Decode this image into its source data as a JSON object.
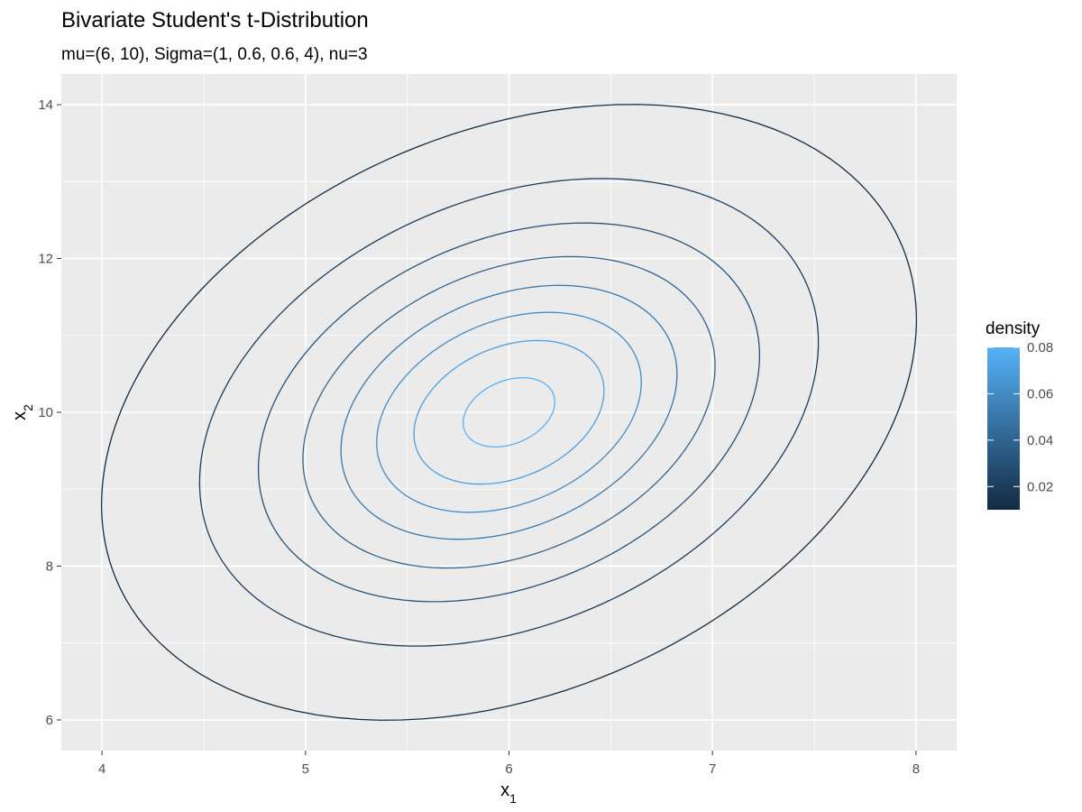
{
  "chart_data": {
    "type": "contour",
    "title": "Bivariate Student's t-Distribution",
    "subtitle": "mu=(6, 10), Sigma=(1, 0.6, 0.6, 4), nu=3",
    "xlabel": "x",
    "xlabel_subscript": "1",
    "ylabel": "x",
    "ylabel_subscript": "2",
    "xlim": [
      3.8,
      8.2
    ],
    "ylim": [
      5.6,
      14.4
    ],
    "x_ticks": [
      4,
      5,
      6,
      7,
      8
    ],
    "x_tick_labels": [
      "4",
      "5",
      "6",
      "7",
      "8"
    ],
    "y_ticks": [
      6,
      8,
      10,
      12,
      14
    ],
    "y_tick_labels": [
      "6",
      "8",
      "10",
      "12",
      "14"
    ],
    "grid": true,
    "distribution": {
      "mu": [
        6,
        10
      ],
      "sigma": [
        [
          1,
          0.6
        ],
        [
          0.6,
          4
        ]
      ],
      "nu": 3
    },
    "contour_levels": [
      0.01,
      0.02,
      0.03,
      0.04,
      0.05,
      0.06,
      0.07,
      0.08
    ],
    "legend": {
      "title": "density",
      "placement": "right",
      "range": [
        0.01,
        0.08
      ],
      "ticks": [
        0.02,
        0.04,
        0.06,
        0.08
      ],
      "tick_labels": [
        "0.02",
        "0.04",
        "0.06",
        "0.08"
      ],
      "color_low": "#132b43",
      "color_high": "#56b1f7"
    }
  }
}
